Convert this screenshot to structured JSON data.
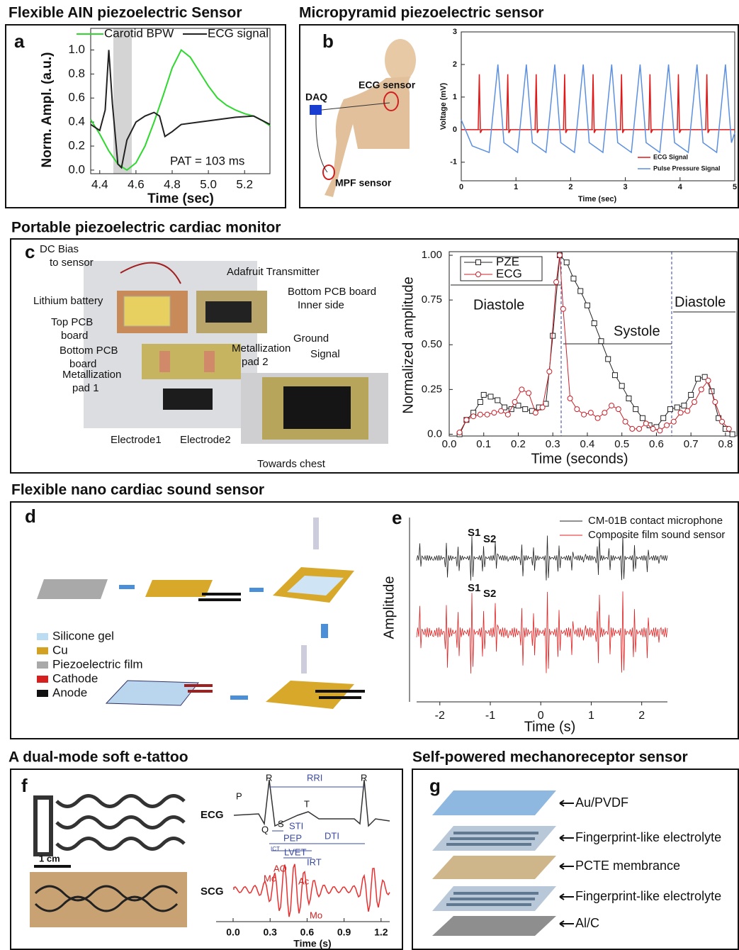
{
  "chart_data": [
    {
      "type": "line",
      "letter": "a",
      "heading": "Flexible AIN piezoelectric Sensor",
      "ylabel": "Norm. Ampl. (a.u.)",
      "xlabel": "Time (sec)",
      "annotation": "PAT = 103 ms",
      "xlim": [
        4.35,
        5.34
      ],
      "ylim": [
        -0.03,
        1.18
      ],
      "xticks": [
        4.4,
        4.6,
        4.8,
        {
          "value": 5,
          "label": "5.0"
        },
        5.2
      ],
      "yticks": [
        {
          "value": 0,
          "label": "0.0"
        },
        0.2,
        0.4,
        0.6,
        0.8,
        {
          "value": 1,
          "label": "1.0"
        }
      ],
      "series": [
        {
          "name": "Carotid BPW",
          "color": "#2fd82f",
          "x": [
            4.35,
            4.4,
            4.45,
            4.5,
            4.55,
            4.6,
            4.65,
            4.7,
            4.75,
            4.8,
            4.85,
            4.9,
            4.95,
            5.0,
            5.05,
            5.1,
            5.15,
            5.2,
            5.25,
            5.3,
            5.34
          ],
          "values": [
            0.42,
            0.3,
            0.16,
            0.05,
            0.0,
            0.06,
            0.2,
            0.4,
            0.62,
            0.85,
            1.0,
            0.94,
            0.82,
            0.7,
            0.6,
            0.54,
            0.5,
            0.47,
            0.45,
            0.41,
            0.37
          ]
        },
        {
          "name": "ECG signal",
          "color": "#222222",
          "x": [
            4.35,
            4.4,
            4.43,
            4.45,
            4.47,
            4.5,
            4.52,
            4.55,
            4.6,
            4.65,
            4.7,
            4.73,
            4.76,
            4.8,
            4.85,
            4.95,
            5.05,
            5.15,
            5.25,
            5.34
          ],
          "values": [
            0.38,
            0.33,
            0.5,
            1.0,
            0.55,
            0.05,
            0.02,
            0.25,
            0.4,
            0.45,
            0.48,
            0.45,
            0.28,
            0.32,
            0.38,
            0.4,
            0.42,
            0.44,
            0.45,
            0.38
          ]
        }
      ]
    },
    {
      "type": "line",
      "letter": "b",
      "heading": "Micropyramid piezoelectric sensor",
      "ylabel": "Voltage (mV)",
      "xlabel": "Time (sec)",
      "xlim": [
        0,
        5
      ],
      "ylim": [
        -1.57,
        3
      ],
      "xticks": [
        0,
        1,
        2,
        3,
        4,
        5
      ],
      "yticks": [
        -1,
        0,
        1,
        2,
        3
      ],
      "series": [
        {
          "name": "ECG Signal",
          "color": "#e01818",
          "x": [
            0,
            0.31,
            0.33,
            0.35,
            0.38,
            0.83,
            0.85,
            0.87,
            0.9,
            1.35,
            1.37,
            1.39,
            1.42,
            1.87,
            1.89,
            1.91,
            1.94,
            2.39,
            2.41,
            2.43,
            2.46,
            2.91,
            2.93,
            2.95,
            2.98,
            3.43,
            3.45,
            3.47,
            3.5,
            3.95,
            3.97,
            3.99,
            4.02,
            4.47,
            4.49,
            4.51,
            4.54,
            5
          ],
          "values": [
            0,
            0,
            1.7,
            -0.1,
            0,
            0,
            1.7,
            -0.1,
            0,
            0,
            1.7,
            -0.1,
            0,
            0,
            1.7,
            -0.1,
            0,
            0,
            1.7,
            -0.1,
            0,
            0,
            1.7,
            -0.1,
            0,
            0,
            1.7,
            -0.1,
            0,
            0,
            1.7,
            -0.1,
            0,
            0,
            1.7,
            -0.1,
            0,
            0
          ]
        },
        {
          "name": "Pulse Pressure Signal",
          "color": "#5b8fe0",
          "x": [
            0,
            0.2,
            0.51,
            0.67,
            0.78,
            1.03,
            1.19,
            1.3,
            1.55,
            1.71,
            1.82,
            2.07,
            2.23,
            2.34,
            2.59,
            2.75,
            2.86,
            3.11,
            3.27,
            3.38,
            3.63,
            3.79,
            3.9,
            4.15,
            4.31,
            4.42,
            4.67,
            4.83,
            4.94,
            5
          ],
          "values": [
            0.3,
            -0.5,
            -0.7,
            2.0,
            -0.4,
            -0.7,
            2.0,
            -0.4,
            -0.7,
            2.0,
            -0.4,
            -0.7,
            2.0,
            -0.4,
            -0.7,
            2.0,
            -0.4,
            -0.7,
            2.0,
            -0.4,
            -0.7,
            2.0,
            -0.4,
            -0.7,
            2.0,
            -0.4,
            -0.7,
            2.0,
            -0.4,
            -0.1
          ]
        }
      ]
    },
    {
      "type": "line",
      "letter": "c",
      "heading": "Portable piezoelectric cardiac monitor",
      "ylabel": "Normalized amplitude",
      "xlabel": "Time (seconds)",
      "annotations": [
        "Diastole",
        "Systole",
        "Diastole"
      ],
      "xlim": [
        0,
        0.833
      ],
      "ylim": [
        -0.01,
        1.02
      ],
      "xticks": [
        {
          "value": 0,
          "label": "0.0"
        },
        0.1,
        0.2,
        0.3,
        0.4,
        0.5,
        0.6,
        0.7,
        0.8
      ],
      "yticks": [
        {
          "value": 0,
          "label": "0.0"
        },
        0.25,
        {
          "value": 0.5,
          "label": "0.50"
        },
        0.75,
        {
          "value": 1,
          "label": "1.00"
        }
      ],
      "series": [
        {
          "name": "PZE",
          "color": "#222222",
          "marker": "square",
          "x": [
            0.03,
            0.05,
            0.07,
            0.09,
            0.1,
            0.12,
            0.14,
            0.16,
            0.18,
            0.2,
            0.22,
            0.24,
            0.26,
            0.28,
            0.3,
            0.32,
            0.34,
            0.36,
            0.38,
            0.4,
            0.42,
            0.44,
            0.46,
            0.48,
            0.5,
            0.52,
            0.54,
            0.56,
            0.58,
            0.6,
            0.62,
            0.64,
            0.66,
            0.68,
            0.7,
            0.72,
            0.74,
            0.76,
            0.78,
            0.8,
            0.82
          ],
          "values": [
            0.0,
            0.08,
            0.12,
            0.18,
            0.22,
            0.21,
            0.19,
            0.15,
            0.14,
            0.16,
            0.14,
            0.13,
            0.15,
            0.17,
            0.55,
            1.0,
            0.96,
            0.87,
            0.8,
            0.72,
            0.62,
            0.52,
            0.42,
            0.33,
            0.27,
            0.2,
            0.14,
            0.09,
            0.05,
            0.04,
            0.09,
            0.14,
            0.15,
            0.16,
            0.22,
            0.31,
            0.32,
            0.24,
            0.09,
            0.03,
            0.0
          ]
        },
        {
          "name": "ECG",
          "color": "#c8202a",
          "marker": "circle",
          "x": [
            0.03,
            0.05,
            0.07,
            0.09,
            0.11,
            0.13,
            0.15,
            0.17,
            0.19,
            0.21,
            0.23,
            0.25,
            0.27,
            0.29,
            0.31,
            0.32,
            0.33,
            0.35,
            0.37,
            0.39,
            0.41,
            0.43,
            0.45,
            0.47,
            0.49,
            0.51,
            0.53,
            0.55,
            0.57,
            0.59,
            0.61,
            0.63,
            0.65,
            0.67,
            0.69,
            0.71,
            0.73,
            0.75,
            0.77,
            0.79,
            0.81
          ],
          "values": [
            0.01,
            0.08,
            0.1,
            0.11,
            0.11,
            0.12,
            0.13,
            0.11,
            0.18,
            0.25,
            0.23,
            0.12,
            0.15,
            0.35,
            0.85,
            1.0,
            0.7,
            0.2,
            0.14,
            0.11,
            0.12,
            0.09,
            0.12,
            0.16,
            0.14,
            0.07,
            0.03,
            0.03,
            0.06,
            0.03,
            0.02,
            0.05,
            0.07,
            0.12,
            0.13,
            0.18,
            0.25,
            0.3,
            0.18,
            0.07,
            0.03
          ]
        }
      ]
    },
    {
      "type": "waveform",
      "letter": "e",
      "heading": "Flexible nano cardiac sound sensor",
      "ylabel": "Amplitude",
      "xlabel": "Time (s)",
      "annotations": [
        "S1",
        "S2",
        "S1",
        "S2"
      ],
      "xlim": [
        -2.46,
        2.51
      ],
      "xticks": [
        -2,
        -1,
        0,
        1,
        2
      ],
      "series": [
        {
          "name": "CM-01B contact microphone",
          "color": "#222222"
        },
        {
          "name": "Composite film sound sensor",
          "color": "#e02020"
        }
      ]
    },
    {
      "type": "waveform",
      "letter": "f",
      "heading": "A dual-mode soft e-tattoo",
      "xlabel": "Time (s)",
      "scale_bar": "1 cm",
      "annotations": [
        "R",
        "RRI",
        "R",
        "P",
        "T",
        "Q",
        "S",
        "STI",
        "DTI",
        "PEP",
        "ICT",
        "LVET",
        "IRT",
        "AO",
        "Mc",
        "Ac",
        "Mo"
      ],
      "xlim": [
        -0.138,
        1.27
      ],
      "xticks": [
        {
          "value": 0,
          "label": "0.0"
        },
        0.3,
        0.6,
        0.9,
        1.2
      ],
      "series": [
        {
          "name": "ECG",
          "color": "#333333"
        },
        {
          "name": "SCG",
          "color": "#e83030"
        }
      ]
    }
  ],
  "panel_b_labels": [
    "DAQ",
    "ECG sensor",
    "MPF sensor"
  ],
  "panel_c_labels": [
    "DC Bias to sensor",
    "Lithium battery",
    "Top PCB board",
    "Bottom PCB board",
    "Metallization pad 1",
    "Adafruit Transmitter",
    "Bottom PCB board Inner side",
    "Metallization pad 2",
    "Ground",
    "Signal",
    "Electrode1",
    "Electrode2",
    "Towards chest"
  ],
  "panel_d": {
    "letter": "d",
    "legend": [
      "Silicone gel",
      "Cu",
      "Piezoelectric film",
      "Cathode",
      "Anode"
    ]
  },
  "panel_g": {
    "heading": "Self-powered mechanoreceptor sensor",
    "letter": "g",
    "layers": [
      "Au/PVDF",
      "Fingerprint-like electrolyte",
      "PCTE membrance",
      "Fingerprint-like electrolyte",
      "Al/C"
    ]
  }
}
